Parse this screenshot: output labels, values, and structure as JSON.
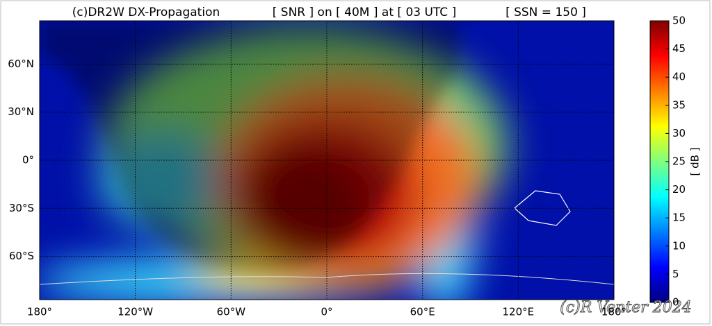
{
  "chart_data": {
    "type": "heatmap-map",
    "title": "(c)DR2W DX-Propagation",
    "subtitle": "[ SNR ] on [ 40M ] at [ 03 UTC ]",
    "annotation": "[ SSN = 150 ]",
    "watermark": "(c)R Venter 2024",
    "xlim": [
      -180,
      180
    ],
    "ylim": [
      -87,
      87
    ],
    "xticks": [
      {
        "value": -180,
        "label": "180°"
      },
      {
        "value": -120,
        "label": "120°W"
      },
      {
        "value": -60,
        "label": "60°W"
      },
      {
        "value": 0,
        "label": "0°"
      },
      {
        "value": 60,
        "label": "60°E"
      },
      {
        "value": 120,
        "label": "120°E"
      },
      {
        "value": 180,
        "label": "180°"
      }
    ],
    "yticks": [
      {
        "value": 60,
        "label": "60°N"
      },
      {
        "value": 30,
        "label": "30°N"
      },
      {
        "value": 0,
        "label": "0°"
      },
      {
        "value": -30,
        "label": "30°S"
      },
      {
        "value": -60,
        "label": "60°S"
      }
    ],
    "grid": true,
    "colorbar": {
      "label": "[ dB ]",
      "lim": [
        0,
        50
      ],
      "ticks": [
        0,
        5,
        10,
        15,
        20,
        25,
        30,
        35,
        40,
        45,
        50
      ],
      "colors": [
        "#00007f",
        "#0000ff",
        "#007fff",
        "#00ffff",
        "#7fff7f",
        "#ffff00",
        "#ff7f00",
        "#ff0000",
        "#7f0000"
      ]
    }
  }
}
